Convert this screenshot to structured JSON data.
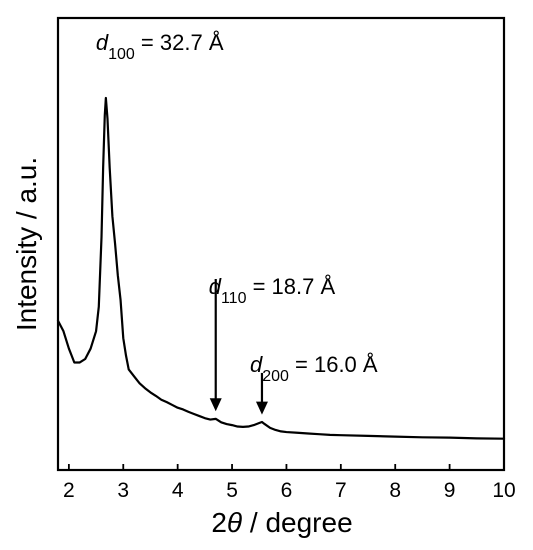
{
  "chart_data": {
    "type": "line",
    "title": "",
    "xlabel": {
      "prefix": "2",
      "symbol": "θ",
      "suffix": " / degree"
    },
    "ylabel": "Intensity / a.u.",
    "xlim": [
      1.8,
      10.0
    ],
    "ylim": [
      0,
      100
    ],
    "y_ticks_shown": false,
    "grid": false,
    "x_ticks": [
      2,
      3,
      4,
      5,
      6,
      7,
      8,
      9,
      10
    ],
    "series": [
      {
        "points": [
          [
            1.8,
            36
          ],
          [
            1.9,
            33
          ],
          [
            2.0,
            28
          ],
          [
            2.05,
            26
          ],
          [
            2.1,
            24
          ],
          [
            2.2,
            24
          ],
          [
            2.3,
            25
          ],
          [
            2.4,
            28
          ],
          [
            2.5,
            33
          ],
          [
            2.55,
            40
          ],
          [
            2.6,
            60
          ],
          [
            2.63,
            80
          ],
          [
            2.66,
            95
          ],
          [
            2.68,
            100
          ],
          [
            2.71,
            94
          ],
          [
            2.75,
            80
          ],
          [
            2.8,
            66
          ],
          [
            2.85,
            58
          ],
          [
            2.9,
            49
          ],
          [
            2.95,
            42
          ],
          [
            3.0,
            31
          ],
          [
            3.05,
            26
          ],
          [
            3.1,
            22
          ],
          [
            3.2,
            20
          ],
          [
            3.3,
            18
          ],
          [
            3.4,
            16.6
          ],
          [
            3.5,
            15.4
          ],
          [
            3.6,
            14.4
          ],
          [
            3.7,
            13.3
          ],
          [
            3.8,
            12.6
          ],
          [
            3.9,
            11.8
          ],
          [
            4.0,
            11.0
          ],
          [
            4.1,
            10.5
          ],
          [
            4.2,
            9.8
          ],
          [
            4.3,
            9.2
          ],
          [
            4.4,
            8.6
          ],
          [
            4.5,
            8.0
          ],
          [
            4.6,
            7.6
          ],
          [
            4.7,
            7.8
          ],
          [
            4.75,
            7.3
          ],
          [
            4.8,
            6.8
          ],
          [
            4.9,
            6.3
          ],
          [
            5.0,
            6.0
          ],
          [
            5.1,
            5.6
          ],
          [
            5.2,
            5.5
          ],
          [
            5.3,
            5.6
          ],
          [
            5.4,
            6.0
          ],
          [
            5.5,
            6.6
          ],
          [
            5.55,
            6.9
          ],
          [
            5.6,
            6.3
          ],
          [
            5.7,
            5.2
          ],
          [
            5.8,
            4.6
          ],
          [
            5.9,
            4.2
          ],
          [
            6.0,
            4.0
          ],
          [
            6.2,
            3.8
          ],
          [
            6.4,
            3.6
          ],
          [
            6.6,
            3.4
          ],
          [
            6.8,
            3.2
          ],
          [
            7.0,
            3.1
          ],
          [
            7.5,
            2.9
          ],
          [
            8.0,
            2.7
          ],
          [
            8.5,
            2.5
          ],
          [
            9.0,
            2.4
          ],
          [
            9.5,
            2.2
          ],
          [
            10.0,
            2.1
          ]
        ]
      }
    ],
    "annotations": [
      {
        "name": "d100",
        "label_italic": "d",
        "label_sub": "100",
        "label_value": " = 32.7 Å",
        "x": 2.68,
        "arrow": false
      },
      {
        "name": "d110",
        "label_italic": "d",
        "label_sub": "110",
        "label_value": " = 18.7 Å",
        "x": 4.7,
        "arrow": true,
        "arrow_from_y": 48,
        "arrow_to_y": 10
      },
      {
        "name": "d200",
        "label_italic": "d",
        "label_sub": "200",
        "label_value": " = 16.0 Å",
        "x": 5.55,
        "arrow": true,
        "arrow_from_y": 21,
        "arrow_to_y": 9
      }
    ]
  }
}
